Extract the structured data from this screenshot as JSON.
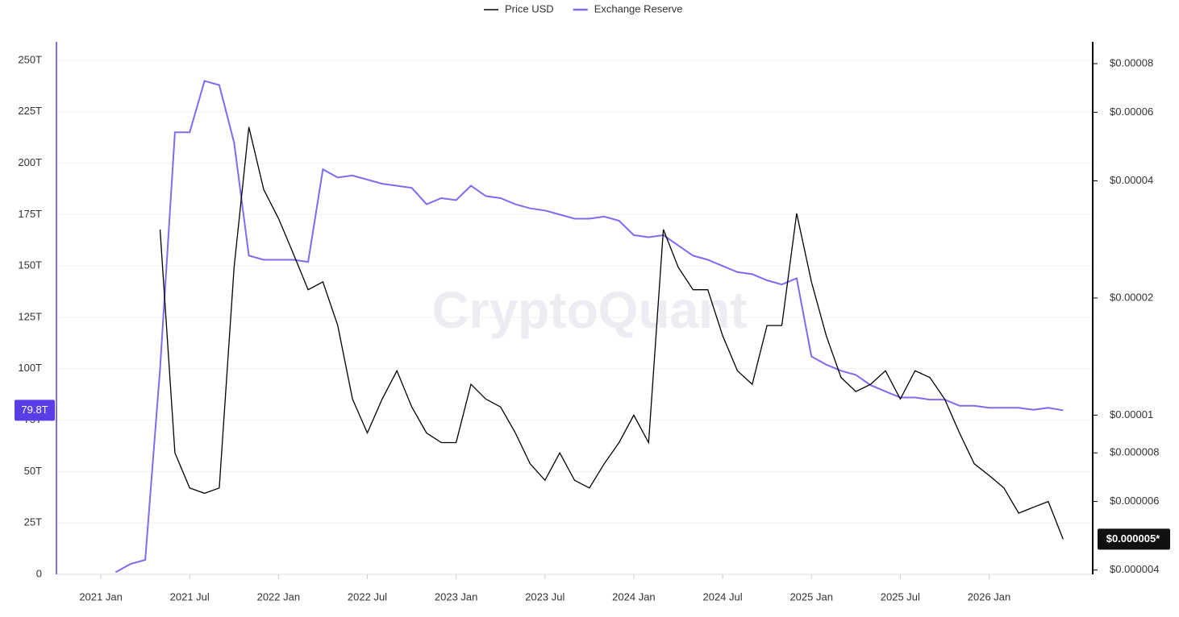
{
  "chart_data": {
    "type": "line",
    "watermark": "CryptoQuant",
    "x": [
      "2021-01",
      "2021-02",
      "2021-03",
      "2021-04",
      "2021-05",
      "2021-06",
      "2021-07",
      "2021-08",
      "2021-09",
      "2021-10",
      "2021-11",
      "2021-12",
      "2022-01",
      "2022-02",
      "2022-03",
      "2022-04",
      "2022-05",
      "2022-06",
      "2022-07",
      "2022-08",
      "2022-09",
      "2022-10",
      "2022-11",
      "2022-12",
      "2023-01",
      "2023-02",
      "2023-03",
      "2023-04",
      "2023-05",
      "2023-06",
      "2023-07",
      "2023-08",
      "2023-09",
      "2023-10",
      "2023-11",
      "2023-12",
      "2024-01",
      "2024-02",
      "2024-03",
      "2024-04",
      "2024-05",
      "2024-06",
      "2024-07",
      "2024-08",
      "2024-09",
      "2024-10",
      "2024-11",
      "2024-12",
      "2025-01",
      "2025-02",
      "2025-03",
      "2025-04",
      "2025-05",
      "2025-06",
      "2025-07",
      "2025-08",
      "2025-09",
      "2025-10",
      "2025-11",
      "2025-12",
      "2026-01",
      "2026-02",
      "2026-03",
      "2026-04",
      "2026-05",
      "2026-06"
    ],
    "xlim": [
      "2020-10",
      "2026-08"
    ],
    "xticks": [
      {
        "value": "2021-01",
        "label": "2021 Jan"
      },
      {
        "value": "2021-07",
        "label": "2021 Jul"
      },
      {
        "value": "2022-01",
        "label": "2022 Jan"
      },
      {
        "value": "2022-07",
        "label": "2022 Jul"
      },
      {
        "value": "2023-01",
        "label": "2023 Jan"
      },
      {
        "value": "2023-07",
        "label": "2023 Jul"
      },
      {
        "value": "2024-01",
        "label": "2024 Jan"
      },
      {
        "value": "2024-07",
        "label": "2024 Jul"
      },
      {
        "value": "2025-01",
        "label": "2025 Jan"
      },
      {
        "value": "2025-07",
        "label": "2025 Jul"
      },
      {
        "value": "2026-01",
        "label": "2026 Jan"
      }
    ],
    "ylim": [
      0,
      259
    ],
    "yticks": [
      0,
      {
        "value": 25,
        "label": "25T"
      },
      {
        "value": 50,
        "label": "50T"
      },
      {
        "value": 75,
        "label": "75T"
      },
      {
        "value": 100,
        "label": "100T"
      },
      {
        "value": 125,
        "label": "125T"
      },
      {
        "value": 150,
        "label": "150T"
      },
      {
        "value": 175,
        "label": "175T"
      },
      {
        "value": 200,
        "label": "200T"
      },
      {
        "value": 225,
        "label": "225T"
      },
      {
        "value": 250,
        "label": "250T"
      }
    ],
    "y2lim": [
      3.9e-06,
      9.1e-05
    ],
    "y2scale": "log",
    "y2ticks": [
      {
        "value": 4e-06,
        "label": "$0.000004"
      },
      {
        "value": 6e-06,
        "label": "$0.000006"
      },
      {
        "value": 8e-06,
        "label": "$0.000008"
      },
      {
        "value": 1e-05,
        "label": "$0.00001"
      },
      {
        "value": 2e-05,
        "label": "$0.00002"
      },
      {
        "value": 4e-05,
        "label": "$0.00004"
      },
      {
        "value": 6e-05,
        "label": "$0.00006"
      },
      {
        "value": 8e-05,
        "label": "$0.00008"
      }
    ],
    "grid": true,
    "legend": "top",
    "series": [
      {
        "name": "Price USD",
        "color": "#000000",
        "axis": "y2",
        "last_label": "$0.000005*",
        "values": [
          null,
          null,
          null,
          null,
          3e-05,
          8e-06,
          6.5e-06,
          6.3e-06,
          6.5e-06,
          2.4e-05,
          5.5e-05,
          3.8e-05,
          3.2e-05,
          2.6e-05,
          2.1e-05,
          2.2e-05,
          1.7e-05,
          1.1e-05,
          9e-06,
          1.1e-05,
          1.3e-05,
          1.05e-05,
          9e-06,
          8.5e-06,
          8.5e-06,
          1.2e-05,
          1.1e-05,
          1.05e-05,
          9e-06,
          7.5e-06,
          6.8e-06,
          8e-06,
          6.8e-06,
          6.5e-06,
          7.5e-06,
          8.5e-06,
          1e-05,
          8.5e-06,
          3e-05,
          2.4e-05,
          2.1e-05,
          2.1e-05,
          1.6e-05,
          1.3e-05,
          1.2e-05,
          1.7e-05,
          1.7e-05,
          3.3e-05,
          2.2e-05,
          1.6e-05,
          1.25e-05,
          1.15e-05,
          1.2e-05,
          1.3e-05,
          1.1e-05,
          1.3e-05,
          1.25e-05,
          1.1e-05,
          9e-06,
          7.5e-06,
          7e-06,
          6.5e-06,
          5.6e-06,
          5.8e-06,
          6e-06,
          4.8e-06
        ]
      },
      {
        "name": "Exchange Reserve",
        "color": "#7b6cf0",
        "last_label": "79.8T",
        "values": [
          null,
          1,
          5,
          7,
          100,
          215,
          215,
          240,
          238,
          210,
          155,
          153,
          153,
          153,
          152,
          197,
          193,
          194,
          192,
          190,
          189,
          188,
          180,
          183,
          182,
          189,
          184,
          183,
          180,
          178,
          177,
          175,
          173,
          173,
          174,
          172,
          165,
          164,
          165,
          160,
          155,
          153,
          150,
          147,
          146,
          143,
          141,
          144,
          106,
          102,
          99,
          97,
          92,
          89,
          86,
          86,
          85,
          85,
          82,
          82,
          81,
          81,
          81,
          80,
          81,
          79.8
        ]
      }
    ]
  }
}
